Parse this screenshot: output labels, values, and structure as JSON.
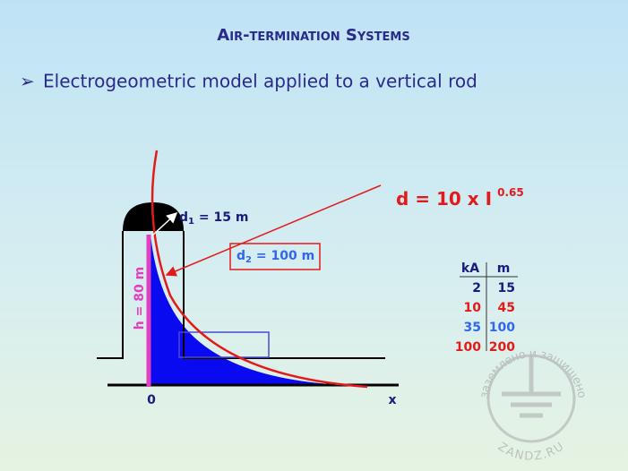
{
  "header": {
    "title": "Air-termination Systems"
  },
  "bullet": "Electrogeometric model applied to a vertical rod",
  "diagram": {
    "d1": {
      "symbol": "d",
      "subscript": "1",
      "rest": " = 15 m"
    },
    "d2": {
      "symbol": "d",
      "subscript": "2",
      "rest": " = 100 m"
    },
    "height": "h = 80 m",
    "origin": "0",
    "axis": "x",
    "formula": {
      "text": "d = 10 x I",
      "exponent": "0.65"
    }
  },
  "table": {
    "header": [
      "kA",
      "m"
    ],
    "rows": [
      [
        2,
        15
      ],
      [
        10,
        45
      ],
      [
        35,
        100
      ],
      [
        100,
        200
      ]
    ]
  },
  "watermark": {
    "arc": "заземлено и защищено",
    "site": "ZANDZ.RU"
  }
}
